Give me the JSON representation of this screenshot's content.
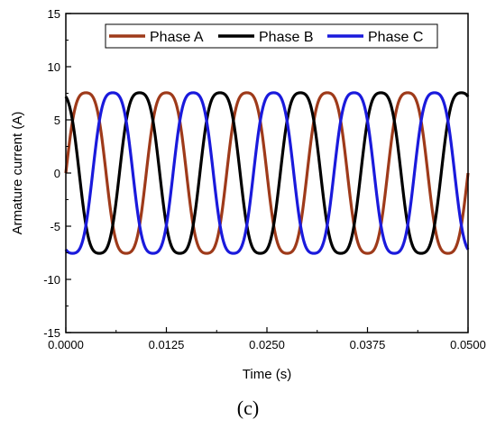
{
  "figure": {
    "caption": "(c)"
  },
  "chart_data": {
    "type": "line",
    "title": "",
    "xlabel": "Time (s)",
    "ylabel": "Armature current (A)",
    "xlim": [
      0,
      0.05
    ],
    "ylim": [
      -15,
      15
    ],
    "xticks": [
      "0.0000",
      "0.0125",
      "0.0250",
      "0.0375",
      "0.0500"
    ],
    "yticks": [
      "-15",
      "-10",
      "-5",
      "0",
      "5",
      "10",
      "15"
    ],
    "grid": false,
    "legend_position": "top",
    "frequency_hz": 100,
    "series": [
      {
        "name": "Phase A",
        "color": "#9e3a1a",
        "amplitude": 8.3,
        "phase_deg": 0,
        "harmonic3_amplitude": 0.75
      },
      {
        "name": "Phase B",
        "color": "#000000",
        "amplitude": 8.3,
        "phase_deg": 240,
        "harmonic3_amplitude": 0.75
      },
      {
        "name": "Phase C",
        "color": "#1a1adc",
        "amplitude": 8.3,
        "phase_deg": 120,
        "harmonic3_amplitude": 0.75
      }
    ]
  }
}
